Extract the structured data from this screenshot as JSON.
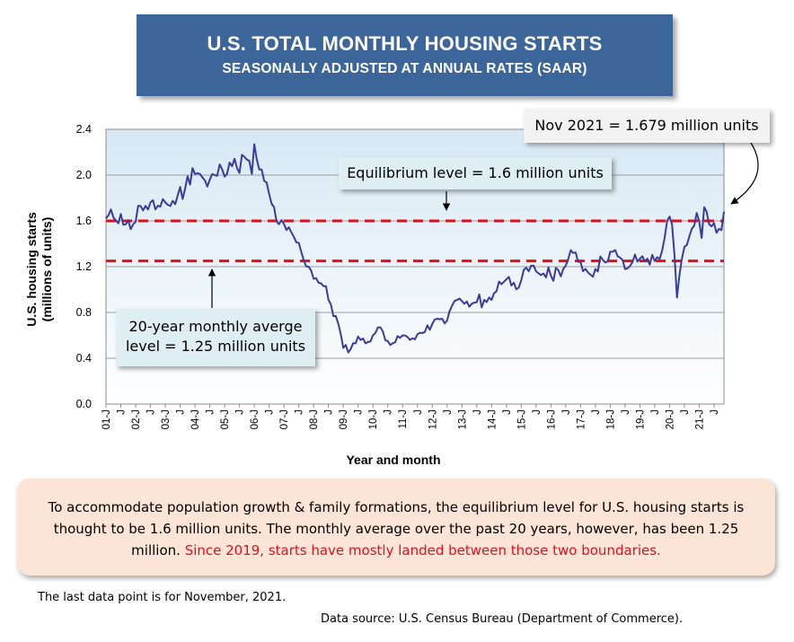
{
  "title": {
    "line1": "U.S. TOTAL MONTHLY HOUSING STARTS",
    "line2": "SEASONALLY ADJUSTED AT ANNUAL RATES (SAAR)"
  },
  "chart_data": {
    "type": "line",
    "ylabel_line1": "U.S. housing starts",
    "ylabel_line2": "(millions of units)",
    "xlabel": "Year and month",
    "ylim": [
      0,
      2.4
    ],
    "yticks": [
      "0.0",
      "0.4",
      "0.8",
      "1.2",
      "1.6",
      "2.0",
      "2.4"
    ],
    "ytick_values": [
      0,
      0.4,
      0.8,
      1.2,
      1.6,
      2.0,
      2.4
    ],
    "grid": true,
    "x_start": "2001-01",
    "x_end": "2021-11",
    "xtick_labels": [
      "01-J",
      "J",
      "02-J",
      "J",
      "03-J",
      "J",
      "04-J",
      "J",
      "05-J",
      "J",
      "06-J",
      "J",
      "07-J",
      "J",
      "08-J",
      "J",
      "09-J",
      "J",
      "10-J",
      "J",
      "11-J",
      "J",
      "12-J",
      "J",
      "13-J",
      "J",
      "14-J",
      "J",
      "15-J",
      "J",
      "16-J",
      "J",
      "17-J",
      "J",
      "18-J",
      "J",
      "19-J",
      "J",
      "20-J",
      "J",
      "21-J",
      "J"
    ],
    "reference_lines": [
      {
        "label": "Equilibrium level  = 1.6 million units",
        "value": 1.6,
        "color": "#e0101e"
      },
      {
        "label": "20-year monthly averge level = 1.25 million units",
        "value": 1.25,
        "color": "#e0101e"
      }
    ],
    "series_color": "#3b3b9a",
    "anchors": [
      [
        "2001-01",
        1.62
      ],
      [
        "2001-04",
        1.63
      ],
      [
        "2001-07",
        1.66
      ],
      [
        "2001-09",
        1.57
      ],
      [
        "2001-12",
        1.57
      ],
      [
        "2002-03",
        1.73
      ],
      [
        "2002-06",
        1.7
      ],
      [
        "2002-09",
        1.7
      ],
      [
        "2002-12",
        1.79
      ],
      [
        "2003-03",
        1.73
      ],
      [
        "2003-06",
        1.82
      ],
      [
        "2003-09",
        1.88
      ],
      [
        "2003-12",
        2.06
      ],
      [
        "2004-03",
        2.01
      ],
      [
        "2004-06",
        1.9
      ],
      [
        "2004-09",
        2.0
      ],
      [
        "2004-12",
        2.05
      ],
      [
        "2005-03",
        2.11
      ],
      [
        "2005-06",
        2.06
      ],
      [
        "2005-09",
        2.16
      ],
      [
        "2005-12",
        2.01
      ],
      [
        "2006-01",
        2.27
      ],
      [
        "2006-03",
        2.05
      ],
      [
        "2006-05",
        1.95
      ],
      [
        "2006-08",
        1.75
      ],
      [
        "2006-11",
        1.57
      ],
      [
        "2007-02",
        1.52
      ],
      [
        "2007-05",
        1.46
      ],
      [
        "2007-08",
        1.33
      ],
      [
        "2007-11",
        1.2
      ],
      [
        "2008-02",
        1.1
      ],
      [
        "2008-05",
        1.03
      ],
      [
        "2008-08",
        0.87
      ],
      [
        "2008-11",
        0.7
      ],
      [
        "2009-01",
        0.49
      ],
      [
        "2009-04",
        0.48
      ],
      [
        "2009-07",
        0.59
      ],
      [
        "2009-10",
        0.53
      ],
      [
        "2010-01",
        0.6
      ],
      [
        "2010-04",
        0.67
      ],
      [
        "2010-07",
        0.55
      ],
      [
        "2010-10",
        0.54
      ],
      [
        "2011-01",
        0.6
      ],
      [
        "2011-04",
        0.56
      ],
      [
        "2011-07",
        0.61
      ],
      [
        "2011-10",
        0.63
      ],
      [
        "2012-01",
        0.7
      ],
      [
        "2012-04",
        0.74
      ],
      [
        "2012-07",
        0.73
      ],
      [
        "2012-10",
        0.9
      ],
      [
        "2013-01",
        0.9
      ],
      [
        "2013-04",
        0.85
      ],
      [
        "2013-07",
        0.89
      ],
      [
        "2013-10",
        0.91
      ],
      [
        "2014-01",
        0.91
      ],
      [
        "2014-04",
        1.07
      ],
      [
        "2014-07",
        1.09
      ],
      [
        "2014-10",
        1.06
      ],
      [
        "2015-01",
        1.08
      ],
      [
        "2015-04",
        1.16
      ],
      [
        "2015-07",
        1.16
      ],
      [
        "2015-10",
        1.14
      ],
      [
        "2016-01",
        1.12
      ],
      [
        "2016-04",
        1.17
      ],
      [
        "2016-07",
        1.21
      ],
      [
        "2016-10",
        1.32
      ],
      [
        "2017-01",
        1.24
      ],
      [
        "2017-04",
        1.15
      ],
      [
        "2017-07",
        1.18
      ],
      [
        "2017-10",
        1.26
      ],
      [
        "2018-01",
        1.33
      ],
      [
        "2018-04",
        1.29
      ],
      [
        "2018-07",
        1.18
      ],
      [
        "2018-10",
        1.24
      ],
      [
        "2019-01",
        1.27
      ],
      [
        "2019-04",
        1.27
      ],
      [
        "2019-07",
        1.25
      ],
      [
        "2019-10",
        1.34
      ],
      [
        "2019-12",
        1.6
      ],
      [
        "2020-02",
        1.57
      ],
      [
        "2020-04",
        0.93
      ],
      [
        "2020-06",
        1.27
      ],
      [
        "2020-08",
        1.39
      ],
      [
        "2020-10",
        1.53
      ],
      [
        "2020-12",
        1.67
      ],
      [
        "2021-02",
        1.45
      ],
      [
        "2021-03",
        1.72
      ],
      [
        "2021-05",
        1.57
      ],
      [
        "2021-07",
        1.58
      ],
      [
        "2021-09",
        1.53
      ],
      [
        "2021-10",
        1.52
      ],
      [
        "2021-11",
        1.679
      ]
    ]
  },
  "annotations": {
    "nov_2021": "Nov 2021 = 1.679 million units",
    "equilibrium": "Equilibrium level  = 1.6 million units",
    "average_line1": "20-year monthly averge",
    "average_line2": "level = 1.25 million units"
  },
  "note": {
    "text": "To accommodate population growth & family formations, the equilibrium level for U.S. housing starts is thought to be 1.6 million units. The monthly average over the past 20 years, however, has been 1.25 million. ",
    "highlight": "Since 2019, starts have mostly landed between those two boundaries."
  },
  "footnotes": {
    "last_point": "The last data point is for November, 2021.",
    "source": "Data source: U.S. Census Bureau (Department of Commerce)."
  }
}
